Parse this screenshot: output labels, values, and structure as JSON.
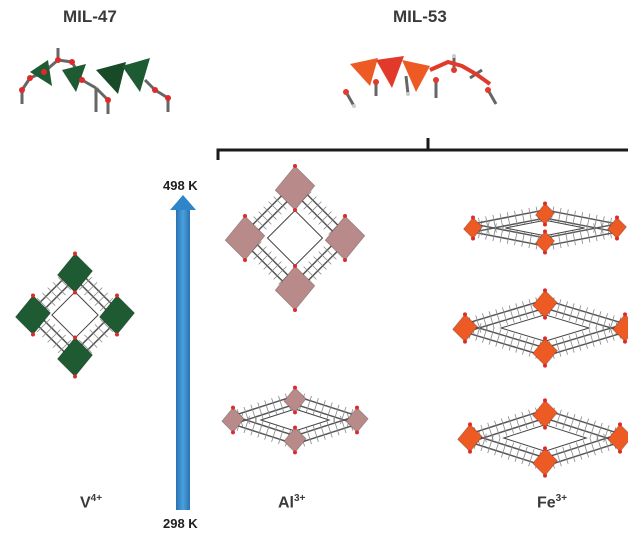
{
  "titles": {
    "mil47": "MIL-47",
    "mil53": "MIL-53"
  },
  "temperature": {
    "top": "498 K",
    "bottom": "298 K"
  },
  "metals": {
    "v": {
      "symbol": "V",
      "charge": "4+"
    },
    "al": {
      "symbol": "Al",
      "charge": "3+"
    },
    "fe": {
      "symbol": "Fe",
      "charge": "3+"
    }
  },
  "colors": {
    "vanadium": "#1e5a32",
    "aluminum": "#b98a8a",
    "iron": "#ee5a24",
    "chain_red": "#e23a2a",
    "arrow": "#2e85c8",
    "linker": "#555555",
    "bracket": "#1a1a1a"
  }
}
